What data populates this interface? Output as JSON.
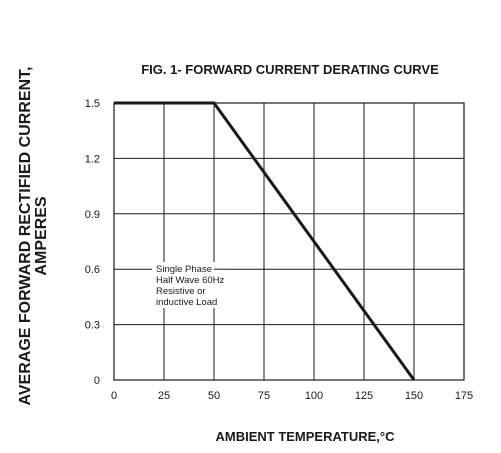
{
  "chart_data": {
    "type": "line",
    "title": "FIG. 1- FORWARD CURRENT DERATING CURVE",
    "ylabel_line1": "AVERAGE FORWARD RECTIFIED CURRENT,",
    "ylabel_line2": "AMPERES",
    "xlabel": "AMBIENT TEMPERATURE,°C",
    "xlim": [
      0,
      175
    ],
    "ylim": [
      0,
      1.5
    ],
    "x_ticks": [
      "0",
      "25",
      "50",
      "75",
      "100",
      "125",
      "150",
      "175"
    ],
    "y_ticks": [
      "0",
      "0.3",
      "0.6",
      "0.9",
      "1.2",
      "1.5"
    ],
    "grid": true,
    "series": [
      {
        "x": [
          0,
          50,
          150
        ],
        "y": [
          1.5,
          1.5,
          0
        ]
      }
    ],
    "annotation": {
      "lines": [
        "Single Phase",
        "Half Wave 60Hz",
        "Resistive or",
        "inductive Load"
      ],
      "pointer_x": 50,
      "pointer_y": 0.6
    }
  }
}
